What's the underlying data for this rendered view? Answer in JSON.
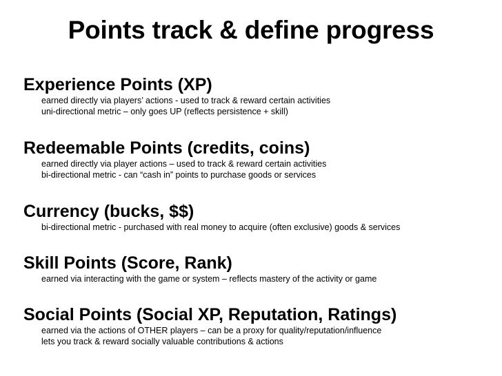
{
  "slide": {
    "title": "Points track & define progress",
    "sections": [
      {
        "heading": "Experience Points (XP)",
        "lines": [
          "earned directly via players’ actions - used to track & reward certain activities",
          "uni-directional metric – only goes UP (reflects persistence + skill)"
        ]
      },
      {
        "heading": "Redeemable Points (credits, coins)",
        "lines": [
          "earned directly via player actions – used to track & reward certain activities",
          "bi-directional metric - can “cash in” points to purchase goods or services"
        ]
      },
      {
        "heading": "Currency (bucks, $$)",
        "lines": [
          "bi-directional metric - purchased with real money to acquire (often exclusive) goods & services"
        ]
      },
      {
        "heading": "Skill Points (Score, Rank)",
        "lines": [
          "earned via interacting with the  game or system – reflects mastery of the activity or game"
        ]
      },
      {
        "heading": "Social Points (Social XP, Reputation, Ratings)",
        "lines": [
          "earned via the actions of OTHER players – can be a proxy for quality/reputation/influence",
          "lets you track & reward socially valuable contributions & actions"
        ]
      }
    ]
  }
}
